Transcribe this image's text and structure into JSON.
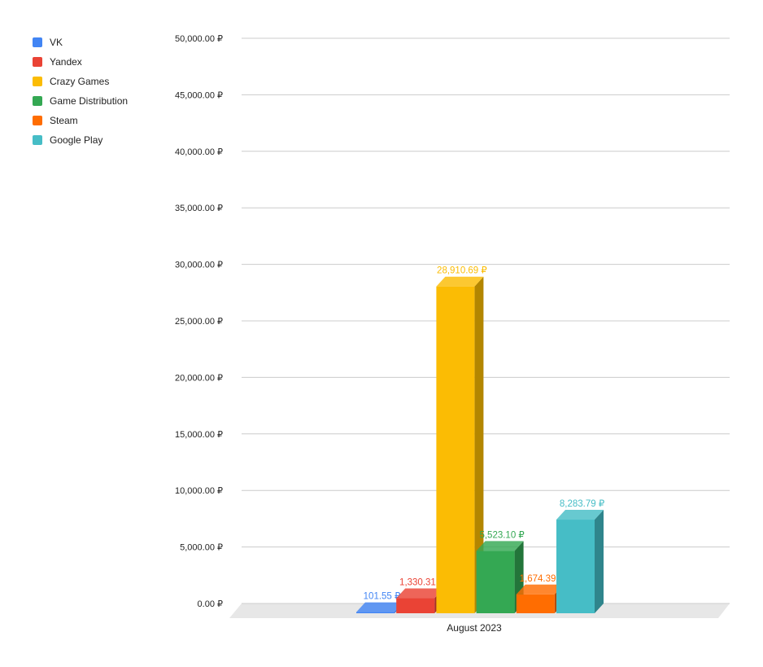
{
  "chart_data": {
    "type": "bar",
    "title": "",
    "xlabel": "",
    "ylabel": "",
    "categories": [
      "August 2023"
    ],
    "ylim": [
      0,
      50000
    ],
    "yticks": [
      "0.00 ₽",
      "5,000.00 ₽",
      "10,000.00 ₽",
      "15,000.00 ₽",
      "20,000.00 ₽",
      "25,000.00 ₽",
      "30,000.00 ₽",
      "35,000.00 ₽",
      "40,000.00 ₽",
      "45,000.00 ₽",
      "50,000.00 ₽"
    ],
    "grid": true,
    "legend_position": "left",
    "style": "3d",
    "series": [
      {
        "name": "VK",
        "values": [
          101.55
        ],
        "label": "101.55 ₽",
        "color": "#4285f4",
        "side": "#2c5fb8"
      },
      {
        "name": "Yandex",
        "values": [
          1330.31
        ],
        "label": "1,330.31 ₽",
        "color": "#ea4335",
        "side": "#a82e25"
      },
      {
        "name": "Crazy Games",
        "values": [
          28910.69
        ],
        "label": "28,910.69 ₽",
        "color": "#fbbc04",
        "side": "#b38600"
      },
      {
        "name": "Game Distribution",
        "values": [
          5523.1
        ],
        "label": "5,523.10 ₽",
        "color": "#34a853",
        "side": "#23753a"
      },
      {
        "name": "Steam",
        "values": [
          1674.39
        ],
        "label": "1,674.39 ₽",
        "color": "#ff6d01",
        "side": "#b54c00"
      },
      {
        "name": "Google Play",
        "values": [
          8283.79
        ],
        "label": "8,283.79 ₽",
        "color": "#46bdc6",
        "side": "#2f858c"
      }
    ]
  }
}
